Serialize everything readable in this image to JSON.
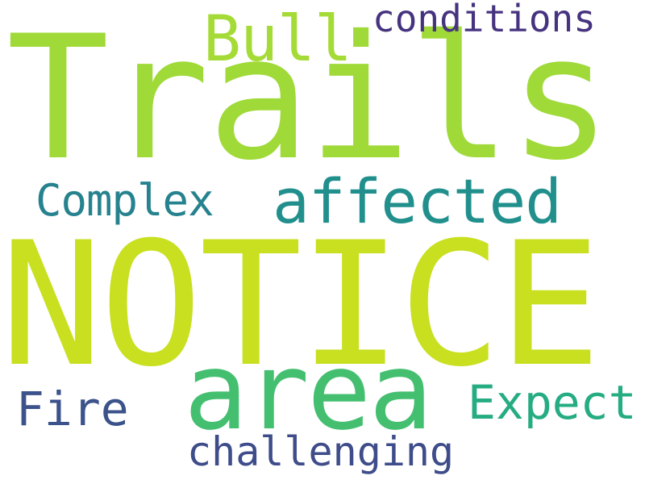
{
  "words": {
    "trails": {
      "text": "Trails",
      "color": "#a0da39"
    },
    "notice": {
      "text": "NOTICE",
      "color": "#c8e020"
    },
    "area": {
      "text": "area",
      "color": "#44bf70"
    },
    "affected": {
      "text": "affected",
      "color": "#21908d"
    },
    "bull": {
      "text": "Bull",
      "color": "#a5db36"
    },
    "conditions": {
      "text": "conditions",
      "color": "#46337f"
    },
    "complex": {
      "text": "Complex",
      "color": "#26828e"
    },
    "fire": {
      "text": "Fire",
      "color": "#3b528b"
    },
    "expect": {
      "text": "Expect",
      "color": "#25ac82"
    },
    "challenging": {
      "text": "challenging",
      "color": "#3e4c8a"
    }
  }
}
